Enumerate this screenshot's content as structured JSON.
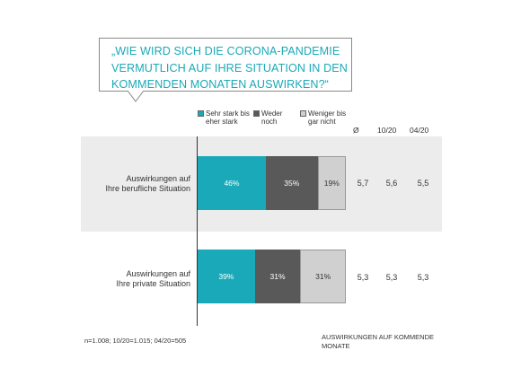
{
  "question": {
    "lines": [
      "„WIE WIRD SICH DIE CORONA-PANDEMIE",
      "VERMUTLICH AUF IHRE SITUATION IN DEN",
      "KOMMENDEN MONATEN AUSWIRKEN?“"
    ]
  },
  "legend": [
    {
      "line1": "Sehr stark bis",
      "line2": "eher stark",
      "color": "#1aa9b8"
    },
    {
      "line1": "Weder",
      "line2": "noch",
      "color": "#595959"
    },
    {
      "line1": "Weniger bis",
      "line2": "gar nicht",
      "color": "#d0d0d0"
    }
  ],
  "columns": {
    "avg": "Ø",
    "wave2": "10/20",
    "wave3": "04/20"
  },
  "footnote": "n=1.008;  10/20=1.015;  04/20=505",
  "topic": {
    "line1": "AUSWIRKUNGEN  AUF KOMMENDE",
    "line2": "MONATE"
  },
  "chart_data": {
    "type": "bar",
    "orientation": "horizontal",
    "stacked": true,
    "categories": [
      {
        "line1": "Auswirkungen auf",
        "line2": "Ihre berufliche Situation"
      },
      {
        "line1": "Auswirkungen auf",
        "line2": "Ihre private Situation"
      }
    ],
    "series": [
      {
        "name": "Sehr stark bis eher stark",
        "values": [
          46,
          39
        ],
        "labels": [
          "46%",
          "39%"
        ]
      },
      {
        "name": "Weder noch",
        "values": [
          35,
          31
        ],
        "labels": [
          "35%",
          "31%"
        ]
      },
      {
        "name": "Weniger bis gar nicht",
        "values": [
          19,
          31
        ],
        "labels": [
          "19%",
          "31%"
        ]
      }
    ],
    "averages": [
      {
        "current": "5,7",
        "wave2": "5,6",
        "wave3": "5,5"
      },
      {
        "current": "5,3",
        "wave2": "5,3",
        "wave3": "5,3"
      }
    ]
  }
}
